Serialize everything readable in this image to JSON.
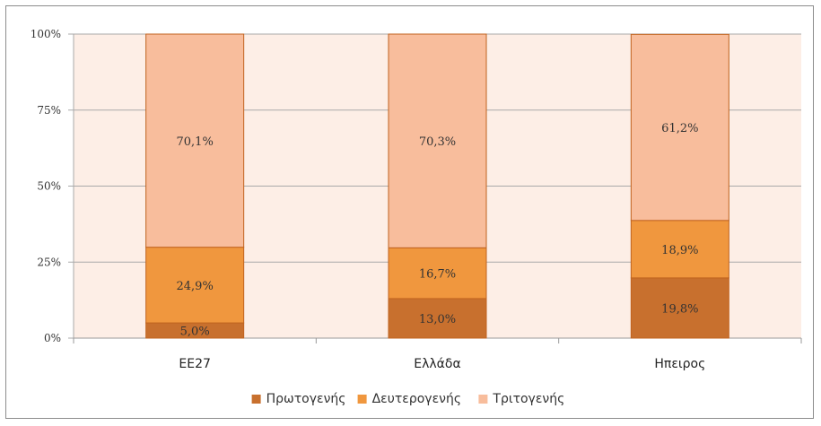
{
  "chart_data": {
    "type": "bar",
    "stacked": true,
    "categories": [
      "ΕΕ27",
      "Ελλάδα",
      "Ηπειρος"
    ],
    "series": [
      {
        "name": "Πρωτογενής",
        "color": "#c8702e",
        "values": [
          5.0,
          13.0,
          19.8
        ],
        "labels": [
          "5,0%",
          "13,0%",
          "19,8%"
        ]
      },
      {
        "name": "Δευτερογενής",
        "color": "#f0973e",
        "values": [
          24.9,
          16.7,
          18.9
        ],
        "labels": [
          "24,9%",
          "16,7%",
          "18,9%"
        ]
      },
      {
        "name": "Τριτογενής",
        "color": "#f8bd9c",
        "values": [
          70.1,
          70.3,
          61.2
        ],
        "labels": [
          "70,1%",
          "70,3%",
          "61,2%"
        ]
      }
    ],
    "yticks": [
      0,
      25,
      50,
      75,
      100
    ],
    "ytick_labels": [
      "0%",
      "25%",
      "50%",
      "75%",
      "100%"
    ],
    "ylim": [
      0,
      100
    ],
    "plot_background": "#fdeee6",
    "grid": true,
    "legend": "bottom"
  }
}
